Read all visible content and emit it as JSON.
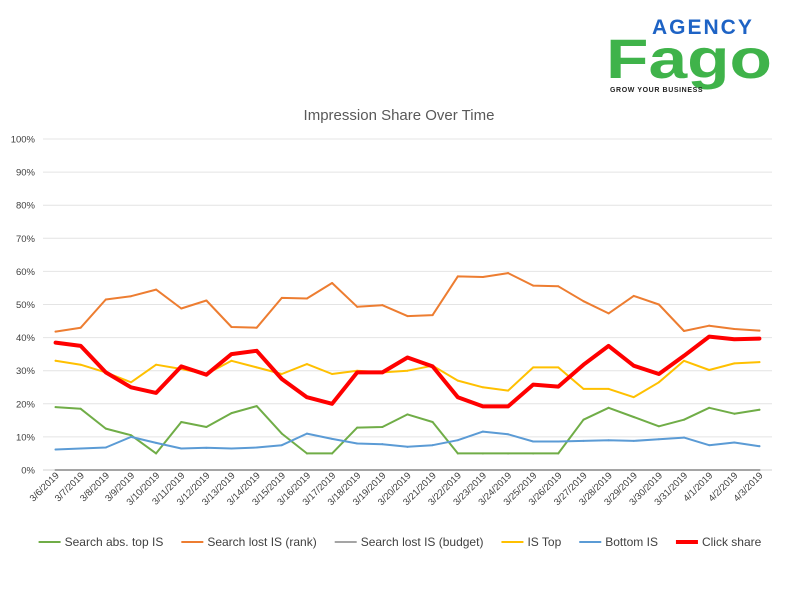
{
  "logo": {
    "wordmark_top": "AGENCY",
    "wordmark_main": "Fago",
    "tagline": "GROW YOUR BUSINESS",
    "colors": {
      "blue": "#1e63c5",
      "green": "#3fb34a"
    }
  },
  "chart_data": {
    "type": "line",
    "title": "Impression Share Over Time",
    "xlabel": "",
    "ylabel": "",
    "ylim": [
      0,
      100
    ],
    "y_ticks": [
      "0%",
      "10%",
      "20%",
      "30%",
      "40%",
      "50%",
      "60%",
      "70%",
      "80%",
      "90%",
      "100%"
    ],
    "grid": true,
    "legend_position": "bottom",
    "categories": [
      "3/6/2019",
      "3/7/2019",
      "3/8/2019",
      "3/9/2019",
      "3/10/2019",
      "3/11/2019",
      "3/12/2019",
      "3/13/2019",
      "3/14/2019",
      "3/15/2019",
      "3/16/2019",
      "3/17/2019",
      "3/18/2019",
      "3/19/2019",
      "3/20/2019",
      "3/21/2019",
      "3/22/2019",
      "3/23/2019",
      "3/24/2019",
      "3/25/2019",
      "3/26/2019",
      "3/27/2019",
      "3/28/2019",
      "3/29/2019",
      "3/30/2019",
      "3/31/2019",
      "4/1/2019",
      "4/2/2019",
      "4/3/2019"
    ],
    "series": [
      {
        "name": "Search abs. top IS",
        "color": "#70ad47",
        "values": [
          19,
          18.5,
          12.5,
          10.5,
          5,
          14.5,
          13,
          17.2,
          19.3,
          11,
          5,
          5,
          12.8,
          13,
          16.8,
          14.5,
          5,
          5,
          5,
          5,
          5,
          15.2,
          18.8,
          16,
          13.2,
          15.2,
          18.8,
          17,
          18.2
        ]
      },
      {
        "name": "Search lost IS (rank)",
        "color": "#ed7d31",
        "values": [
          41.8,
          43,
          51.5,
          52.5,
          54.5,
          48.8,
          51.2,
          43.2,
          43,
          52,
          51.8,
          56.5,
          49.3,
          49.8,
          46.5,
          46.8,
          58.5,
          58.3,
          59.5,
          55.7,
          55.5,
          51,
          47.3,
          52.6,
          50,
          42,
          43.6,
          42.6,
          42.1
        ]
      },
      {
        "name": "Search lost IS (budget)",
        "color": "#a5a5a5",
        "values": [
          0,
          0,
          0,
          0,
          0,
          0,
          0,
          0,
          0,
          0,
          0,
          0,
          0,
          0,
          0,
          0,
          0,
          0,
          0,
          0,
          0,
          0,
          0,
          0,
          0,
          0,
          0,
          0,
          0
        ]
      },
      {
        "name": "IS Top",
        "color": "#ffc000",
        "values": [
          33,
          31.8,
          29.5,
          26.5,
          31.8,
          30.5,
          29,
          33,
          31,
          29,
          32,
          29,
          30,
          29.5,
          30,
          31.5,
          27,
          25,
          24,
          31,
          31,
          24.5,
          24.5,
          22,
          26.5,
          33,
          30.2,
          32.2,
          32.6
        ]
      },
      {
        "name": "Bottom IS",
        "color": "#5b9bd5",
        "values": [
          6.2,
          6.5,
          6.8,
          10,
          8.2,
          6.5,
          6.7,
          6.5,
          6.8,
          7.5,
          11,
          9.4,
          8,
          7.8,
          7,
          7.5,
          9,
          11.6,
          10.8,
          8.6,
          8.6,
          8.8,
          9,
          8.8,
          9.3,
          9.8,
          7.5,
          8.3,
          7.2
        ]
      },
      {
        "name": "Click share",
        "color": "#ff0000",
        "values": [
          38.5,
          37.5,
          29.5,
          25,
          23.3,
          31.3,
          28.8,
          35,
          36,
          27.5,
          22,
          20,
          29.5,
          29.5,
          34,
          31.3,
          22,
          19.2,
          19.2,
          25.8,
          25.2,
          31.8,
          37.5,
          31.5,
          29,
          34.5,
          40.3,
          39.5,
          39.7
        ]
      }
    ]
  }
}
